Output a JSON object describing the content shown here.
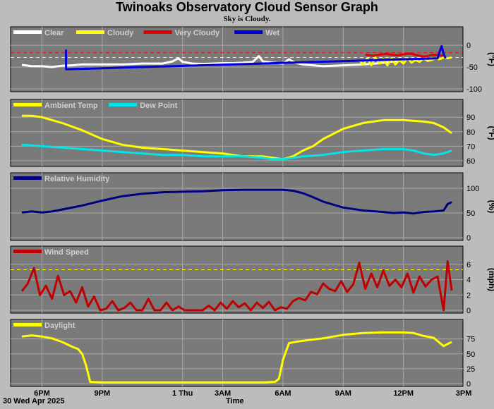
{
  "header": {
    "title": "Twinoaks Observatory Cloud Sensor Graph",
    "subtitle": "Sky is Cloudy."
  },
  "footer": {
    "date": "30 Wed Apr 2025",
    "xlabel": "Time"
  },
  "colors": {
    "background": "#bcbcbc",
    "plot_background": "#7a7a7a",
    "grid": "#a8a8a8",
    "clear": "#ffffff",
    "cloudy": "#ffff00",
    "very_cloudy": "#e00000",
    "wet": "#0000dd",
    "dew_point": "#00e5e5",
    "humidity": "#000080",
    "wind": "#c00000",
    "daylight": "#ffff00",
    "threshold": "#ffff00",
    "threshold_red": "#ff0000"
  },
  "chart_data": [
    {
      "id": "sky",
      "type": "line",
      "ylabel": "(°F)",
      "ylim": [
        -100,
        10
      ],
      "yticks": [
        0,
        -50,
        -100
      ],
      "xticks": [
        "6PM",
        "9PM",
        "1 Thu",
        "3AM",
        "6AM",
        "9AM",
        "12PM",
        "3PM"
      ],
      "legend": [
        {
          "name": "Clear",
          "color": "#ffffff"
        },
        {
          "name": "Cloudy",
          "color": "#ffff00"
        },
        {
          "name": "Very Cloudy",
          "color": "#e00000"
        },
        {
          "name": "Wet",
          "color": "#0000dd"
        }
      ],
      "thresholds": [
        {
          "y": -17,
          "color": "#ff0000"
        },
        {
          "y": -28,
          "color": "#ffff00"
        }
      ],
      "series": [
        {
          "name": "Clear",
          "color": "#ffffff",
          "x": [
            17,
            17.5,
            18,
            18.5,
            19,
            19.5,
            20,
            20.5,
            21,
            21.5,
            22,
            22.5,
            23,
            23.5,
            24,
            24.5,
            24.8,
            25,
            25.5,
            26,
            26.5,
            27,
            27.5,
            28,
            28.5,
            28.8,
            29,
            29.5,
            30,
            30.3,
            30.6,
            31,
            31.5,
            32,
            32.5,
            33,
            33.5,
            34,
            34.3,
            34.6,
            35,
            35.5,
            36
          ],
          "y": [
            -45,
            -48,
            -48,
            -50,
            -47,
            -46,
            -44,
            -44,
            -44,
            -44,
            -44,
            -43,
            -42,
            -42,
            -42,
            -37,
            -30,
            -38,
            -42,
            -43,
            -42,
            -41,
            -41,
            -40,
            -38,
            -25,
            -37,
            -40,
            -42,
            -32,
            -40,
            -44,
            -46,
            -48,
            -47,
            -46,
            -45,
            -44,
            -43,
            -42,
            -40,
            -37,
            -34
          ]
        },
        {
          "name": "Cloudy",
          "color": "#ffff00",
          "x": [
            33.8,
            34,
            34.2,
            34.4,
            34.6,
            34.8,
            35,
            35.2,
            35.4,
            35.6,
            35.8,
            36,
            36.2,
            36.4,
            36.6,
            36.8,
            37,
            37.2,
            37.4,
            37.6,
            37.8,
            38,
            38.2,
            38.4
          ],
          "y": [
            -34,
            -44,
            -30,
            -46,
            -28,
            -42,
            -32,
            -46,
            -30,
            -44,
            -34,
            -42,
            -30,
            -40,
            -34,
            -38,
            -30,
            -36,
            -34,
            -30,
            -32,
            -28,
            -30,
            -28
          ]
        },
        {
          "name": "Very Cloudy",
          "color": "#e00000",
          "x": [
            34.1,
            34.5,
            35.1,
            35.7,
            36.3,
            37.0,
            37.5,
            38.0
          ],
          "y": [
            -22,
            -24,
            -20,
            -23,
            -19,
            -26,
            -22,
            -24
          ]
        },
        {
          "name": "Wet",
          "color": "#0000dd",
          "x": [
            19.2,
            19.2,
            37.7,
            37.8,
            37.9,
            38.0,
            38.1
          ],
          "y": [
            -10,
            -55,
            -30,
            -15,
            -2,
            -20,
            -30
          ]
        }
      ]
    },
    {
      "id": "temperature",
      "type": "line",
      "ylabel": "(°F)",
      "ylim": [
        58,
        94
      ],
      "yticks": [
        90,
        80,
        70,
        60
      ],
      "xticks": [
        "6PM",
        "9PM",
        "1 Thu",
        "3AM",
        "6AM",
        "9AM",
        "12PM",
        "3PM"
      ],
      "legend": [
        {
          "name": "Ambient Temp",
          "color": "#ffff00"
        },
        {
          "name": "Dew Point",
          "color": "#00e5e5"
        }
      ],
      "series": [
        {
          "name": "Ambient Temp",
          "color": "#ffff00",
          "x": [
            17,
            17.5,
            18,
            18.5,
            19,
            20,
            21,
            22,
            23,
            24,
            25,
            26,
            27,
            28,
            29,
            29.5,
            30,
            30.5,
            31,
            31.5,
            32,
            33,
            34,
            35,
            36,
            37,
            37.5,
            38,
            38.4
          ],
          "y": [
            91,
            91,
            90,
            88,
            86,
            81,
            75,
            71,
            69,
            68,
            67,
            66,
            65,
            63,
            63,
            62,
            61,
            63,
            67,
            70,
            75,
            82,
            86,
            88,
            88,
            87,
            86,
            83,
            79
          ]
        },
        {
          "name": "Dew Point",
          "color": "#00e5e5",
          "x": [
            17,
            18,
            19,
            20,
            21,
            22,
            23,
            24,
            25,
            26,
            27,
            28,
            29,
            29.5,
            30,
            30.5,
            31,
            32,
            33,
            34,
            35,
            36,
            36.5,
            37,
            37.5,
            38,
            38.4
          ],
          "y": [
            71,
            70,
            69,
            68,
            67,
            66,
            65,
            64,
            64,
            63,
            63,
            63,
            62,
            61,
            61,
            62,
            63,
            64,
            66,
            67,
            68,
            68,
            67,
            65,
            64,
            65,
            67
          ]
        }
      ]
    },
    {
      "id": "humidity",
      "type": "line",
      "ylabel": "(%)",
      "ylim": [
        0,
        110
      ],
      "yticks": [
        100,
        50,
        0
      ],
      "xticks": [
        "6PM",
        "9PM",
        "1 Thu",
        "3AM",
        "6AM",
        "9AM",
        "12PM",
        "3PM"
      ],
      "legend": [
        {
          "name": "Relative Humidity",
          "color": "#000080"
        }
      ],
      "series": [
        {
          "name": "Relative Humidity",
          "color": "#000080",
          "x": [
            17,
            17.5,
            18,
            18.5,
            19,
            20,
            21,
            22,
            23,
            24,
            25,
            26,
            27,
            28,
            29,
            30,
            30.5,
            31,
            31.5,
            32,
            33,
            34,
            35,
            35.5,
            36,
            36.5,
            37,
            37.5,
            38,
            38.2,
            38.4
          ],
          "y": [
            51,
            53,
            51,
            53,
            57,
            65,
            75,
            84,
            89,
            92,
            93,
            94,
            96,
            97,
            97,
            97,
            95,
            90,
            82,
            73,
            61,
            55,
            52,
            50,
            51,
            49,
            52,
            53,
            55,
            68,
            72
          ]
        }
      ]
    },
    {
      "id": "wind",
      "type": "line",
      "ylabel": "(mph)",
      "ylim": [
        0,
        7
      ],
      "yticks": [
        6,
        4,
        2,
        0
      ],
      "xticks": [
        "6PM",
        "9PM",
        "1 Thu",
        "3AM",
        "6AM",
        "9AM",
        "12PM",
        "3PM"
      ],
      "legend": [
        {
          "name": "Wind Speed",
          "color": "#c00000"
        }
      ],
      "thresholds": [
        {
          "y": 5.3,
          "color": "#ffff00"
        }
      ],
      "series": [
        {
          "name": "Wind Speed",
          "color": "#c00000",
          "x": [
            17,
            17.3,
            17.6,
            17.9,
            18.2,
            18.5,
            18.8,
            19.1,
            19.4,
            19.7,
            20,
            20.3,
            20.6,
            20.9,
            21.2,
            21.5,
            21.8,
            22.1,
            22.4,
            22.7,
            23,
            23.3,
            23.6,
            23.9,
            24.2,
            24.5,
            24.8,
            25.1,
            25.4,
            25.7,
            26,
            26.3,
            26.6,
            26.9,
            27.2,
            27.5,
            27.8,
            28.1,
            28.4,
            28.7,
            29,
            29.3,
            29.6,
            29.9,
            30.2,
            30.5,
            30.8,
            31.1,
            31.4,
            31.7,
            32,
            32.3,
            32.6,
            32.9,
            33.2,
            33.5,
            33.8,
            34.1,
            34.4,
            34.7,
            35,
            35.3,
            35.6,
            35.9,
            36.2,
            36.5,
            36.8,
            37.1,
            37.4,
            37.7,
            38,
            38.2,
            38.4
          ],
          "y": [
            2.5,
            3.5,
            5.5,
            2,
            3.2,
            1.5,
            4.5,
            2,
            2.5,
            1,
            3,
            0.5,
            1.8,
            0,
            0.2,
            1.2,
            0,
            0.3,
            1,
            0,
            0,
            1.5,
            0,
            0,
            1,
            0,
            0.5,
            0,
            0,
            0,
            0,
            0.6,
            0,
            1,
            0.2,
            1.2,
            0.4,
            0.9,
            0,
            1,
            0.3,
            1.1,
            0,
            0.4,
            0.2,
            1.2,
            1.6,
            1.3,
            2.4,
            2.1,
            3.5,
            2.8,
            2.5,
            3.8,
            2.4,
            3.4,
            6.2,
            2.8,
            4.8,
            3,
            5.2,
            3.2,
            4,
            3,
            4.8,
            2.3,
            4.4,
            3.1,
            4,
            4.4,
            0,
            6.4,
            2.6
          ]
        }
      ]
    },
    {
      "id": "daylight",
      "type": "line",
      "ylim": [
        0,
        90
      ],
      "yticks": [
        75,
        50,
        25,
        0
      ],
      "xticks": [
        "6PM",
        "9PM",
        "1 Thu",
        "3AM",
        "6AM",
        "9AM",
        "12PM",
        "3PM"
      ],
      "legend": [
        {
          "name": "Daylight",
          "color": "#ffff00"
        }
      ],
      "series": [
        {
          "name": "Daylight",
          "color": "#ffff00",
          "x": [
            17,
            17.5,
            18,
            18.5,
            19,
            19.5,
            19.8,
            20,
            20.2,
            20.4,
            21,
            22,
            23,
            24,
            25,
            26,
            27,
            28,
            29,
            29.6,
            29.8,
            30.0,
            30.3,
            30.6,
            31,
            32,
            33,
            34,
            35,
            36,
            36.5,
            37,
            37.5,
            38,
            38.4
          ],
          "y": [
            79,
            81,
            79,
            76,
            70,
            62,
            58,
            50,
            30,
            3,
            2,
            2,
            2,
            2,
            2,
            2,
            2,
            2,
            2,
            3,
            8,
            40,
            68,
            70,
            72,
            76,
            82,
            85,
            86,
            86,
            85,
            80,
            77,
            63,
            70
          ]
        }
      ]
    }
  ]
}
